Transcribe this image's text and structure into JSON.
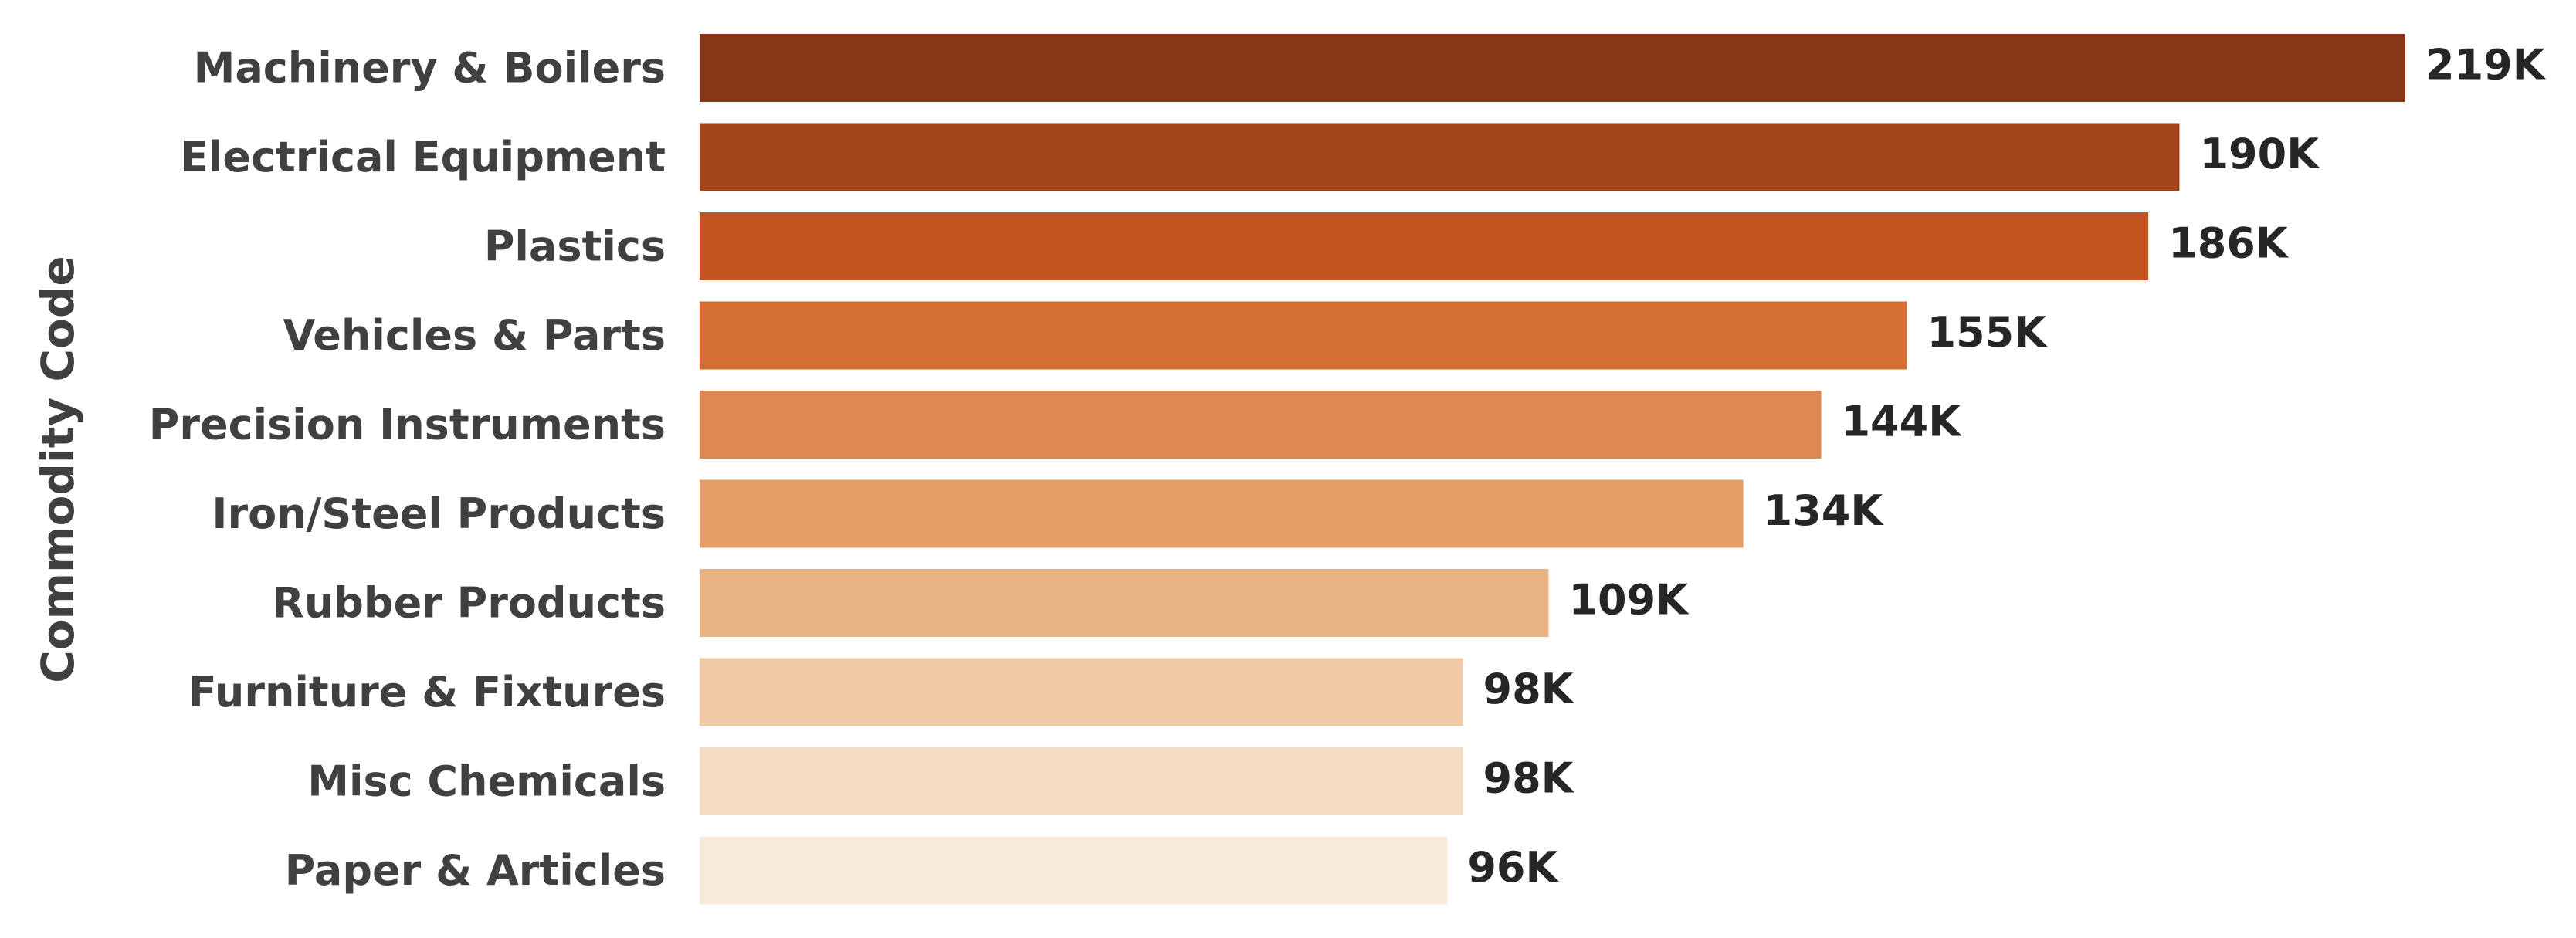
{
  "chart_data": {
    "type": "bar",
    "orientation": "horizontal",
    "title": "",
    "xlabel": "",
    "ylabel": "Commodity Code",
    "grid": false,
    "legend": "none",
    "categories": [
      "Machinery & Boilers",
      "Electrical Equipment",
      "Plastics",
      "Vehicles & Parts",
      "Precision Instruments",
      "Iron/Steel Products",
      "Rubber Products",
      "Furniture & Fixtures",
      "Misc Chemicals",
      "Paper & Articles"
    ],
    "values": [
      219000,
      190000,
      186000,
      155000,
      144000,
      134000,
      109000,
      98000,
      98000,
      96000
    ],
    "value_labels": [
      "219K",
      "190K",
      "186K",
      "155K",
      "144K",
      "134K",
      "109K",
      "98K",
      "98K",
      "96K"
    ],
    "colors": [
      "#873718",
      "#a5451b",
      "#c25520",
      "#d46e33",
      "#df8851",
      "#e69d67",
      "#eab384",
      "#f1c9a5",
      "#f4dcc2",
      "#f8eadb"
    ],
    "xlim": [
      0,
      219000
    ]
  }
}
